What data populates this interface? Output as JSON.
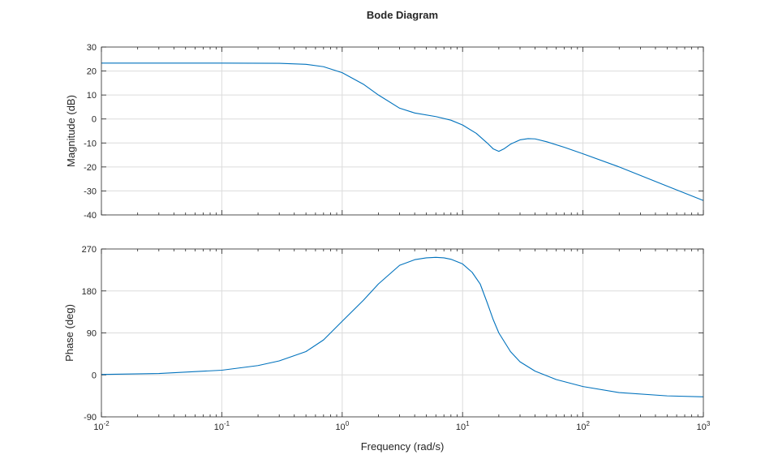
{
  "chart_data": {
    "type": "line",
    "title": "Bode Diagram",
    "xlabel": "Frequency (rad/s)",
    "x_scale": "log",
    "xlim": [
      0.01,
      1000
    ],
    "x_ticks": [
      {
        "value": 0.01,
        "base": "10",
        "exp": "-2"
      },
      {
        "value": 0.1,
        "base": "10",
        "exp": "-1"
      },
      {
        "value": 1,
        "base": "10",
        "exp": "0"
      },
      {
        "value": 10,
        "base": "10",
        "exp": "1"
      },
      {
        "value": 100,
        "base": "10",
        "exp": "2"
      },
      {
        "value": 1000,
        "base": "10",
        "exp": "3"
      }
    ],
    "grid": true,
    "line_color": "#0072BD",
    "grid_color": "#dcdcdc",
    "axis_color": "#262626",
    "panels": [
      {
        "id": "magnitude",
        "ylabel": "Magnitude (dB)",
        "ylim": [
          -40,
          30
        ],
        "yticks": [
          "30",
          "20",
          "10",
          "0",
          "-10",
          "-20",
          "-30",
          "-40"
        ],
        "series": [
          {
            "x": [
              0.01,
              0.1,
              0.3,
              0.5,
              0.7,
              1,
              1.5,
              2,
              3,
              4,
              6,
              8,
              10,
              13,
              16,
              18,
              20,
              22,
              25,
              30,
              35,
              40,
              50,
              70,
              100,
              200,
              500,
              1000
            ],
            "y": [
              23.3,
              23.3,
              23.2,
              22.8,
              21.8,
              19.3,
              14.5,
              10.0,
              4.5,
              2.5,
              1.0,
              -0.5,
              -2.5,
              -6.0,
              -10.0,
              -12.5,
              -13.5,
              -12.5,
              -10.5,
              -8.7,
              -8.2,
              -8.3,
              -9.5,
              -11.8,
              -14.5,
              -20.0,
              -28.0,
              -34.0
            ]
          }
        ]
      },
      {
        "id": "phase",
        "ylabel": "Phase (deg)",
        "ylim": [
          -90,
          270
        ],
        "yticks": [
          "270",
          "180",
          "90",
          "0",
          "-90"
        ],
        "series": [
          {
            "x": [
              0.01,
              0.03,
              0.1,
              0.2,
              0.3,
              0.5,
              0.7,
              1,
              1.5,
              2,
              3,
              4,
              5,
              6,
              7,
              8,
              10,
              12,
              14,
              16,
              18,
              20,
              25,
              30,
              40,
              60,
              100,
              200,
              500,
              1000
            ],
            "y": [
              1,
              3,
              10,
              20,
              30,
              50,
              75,
              115,
              160,
              195,
              235,
              247,
              251,
              252,
              251,
              248,
              238,
              220,
              195,
              155,
              118,
              90,
              50,
              28,
              8,
              -10,
              -25,
              -38,
              -45,
              -47
            ]
          }
        ]
      }
    ]
  }
}
